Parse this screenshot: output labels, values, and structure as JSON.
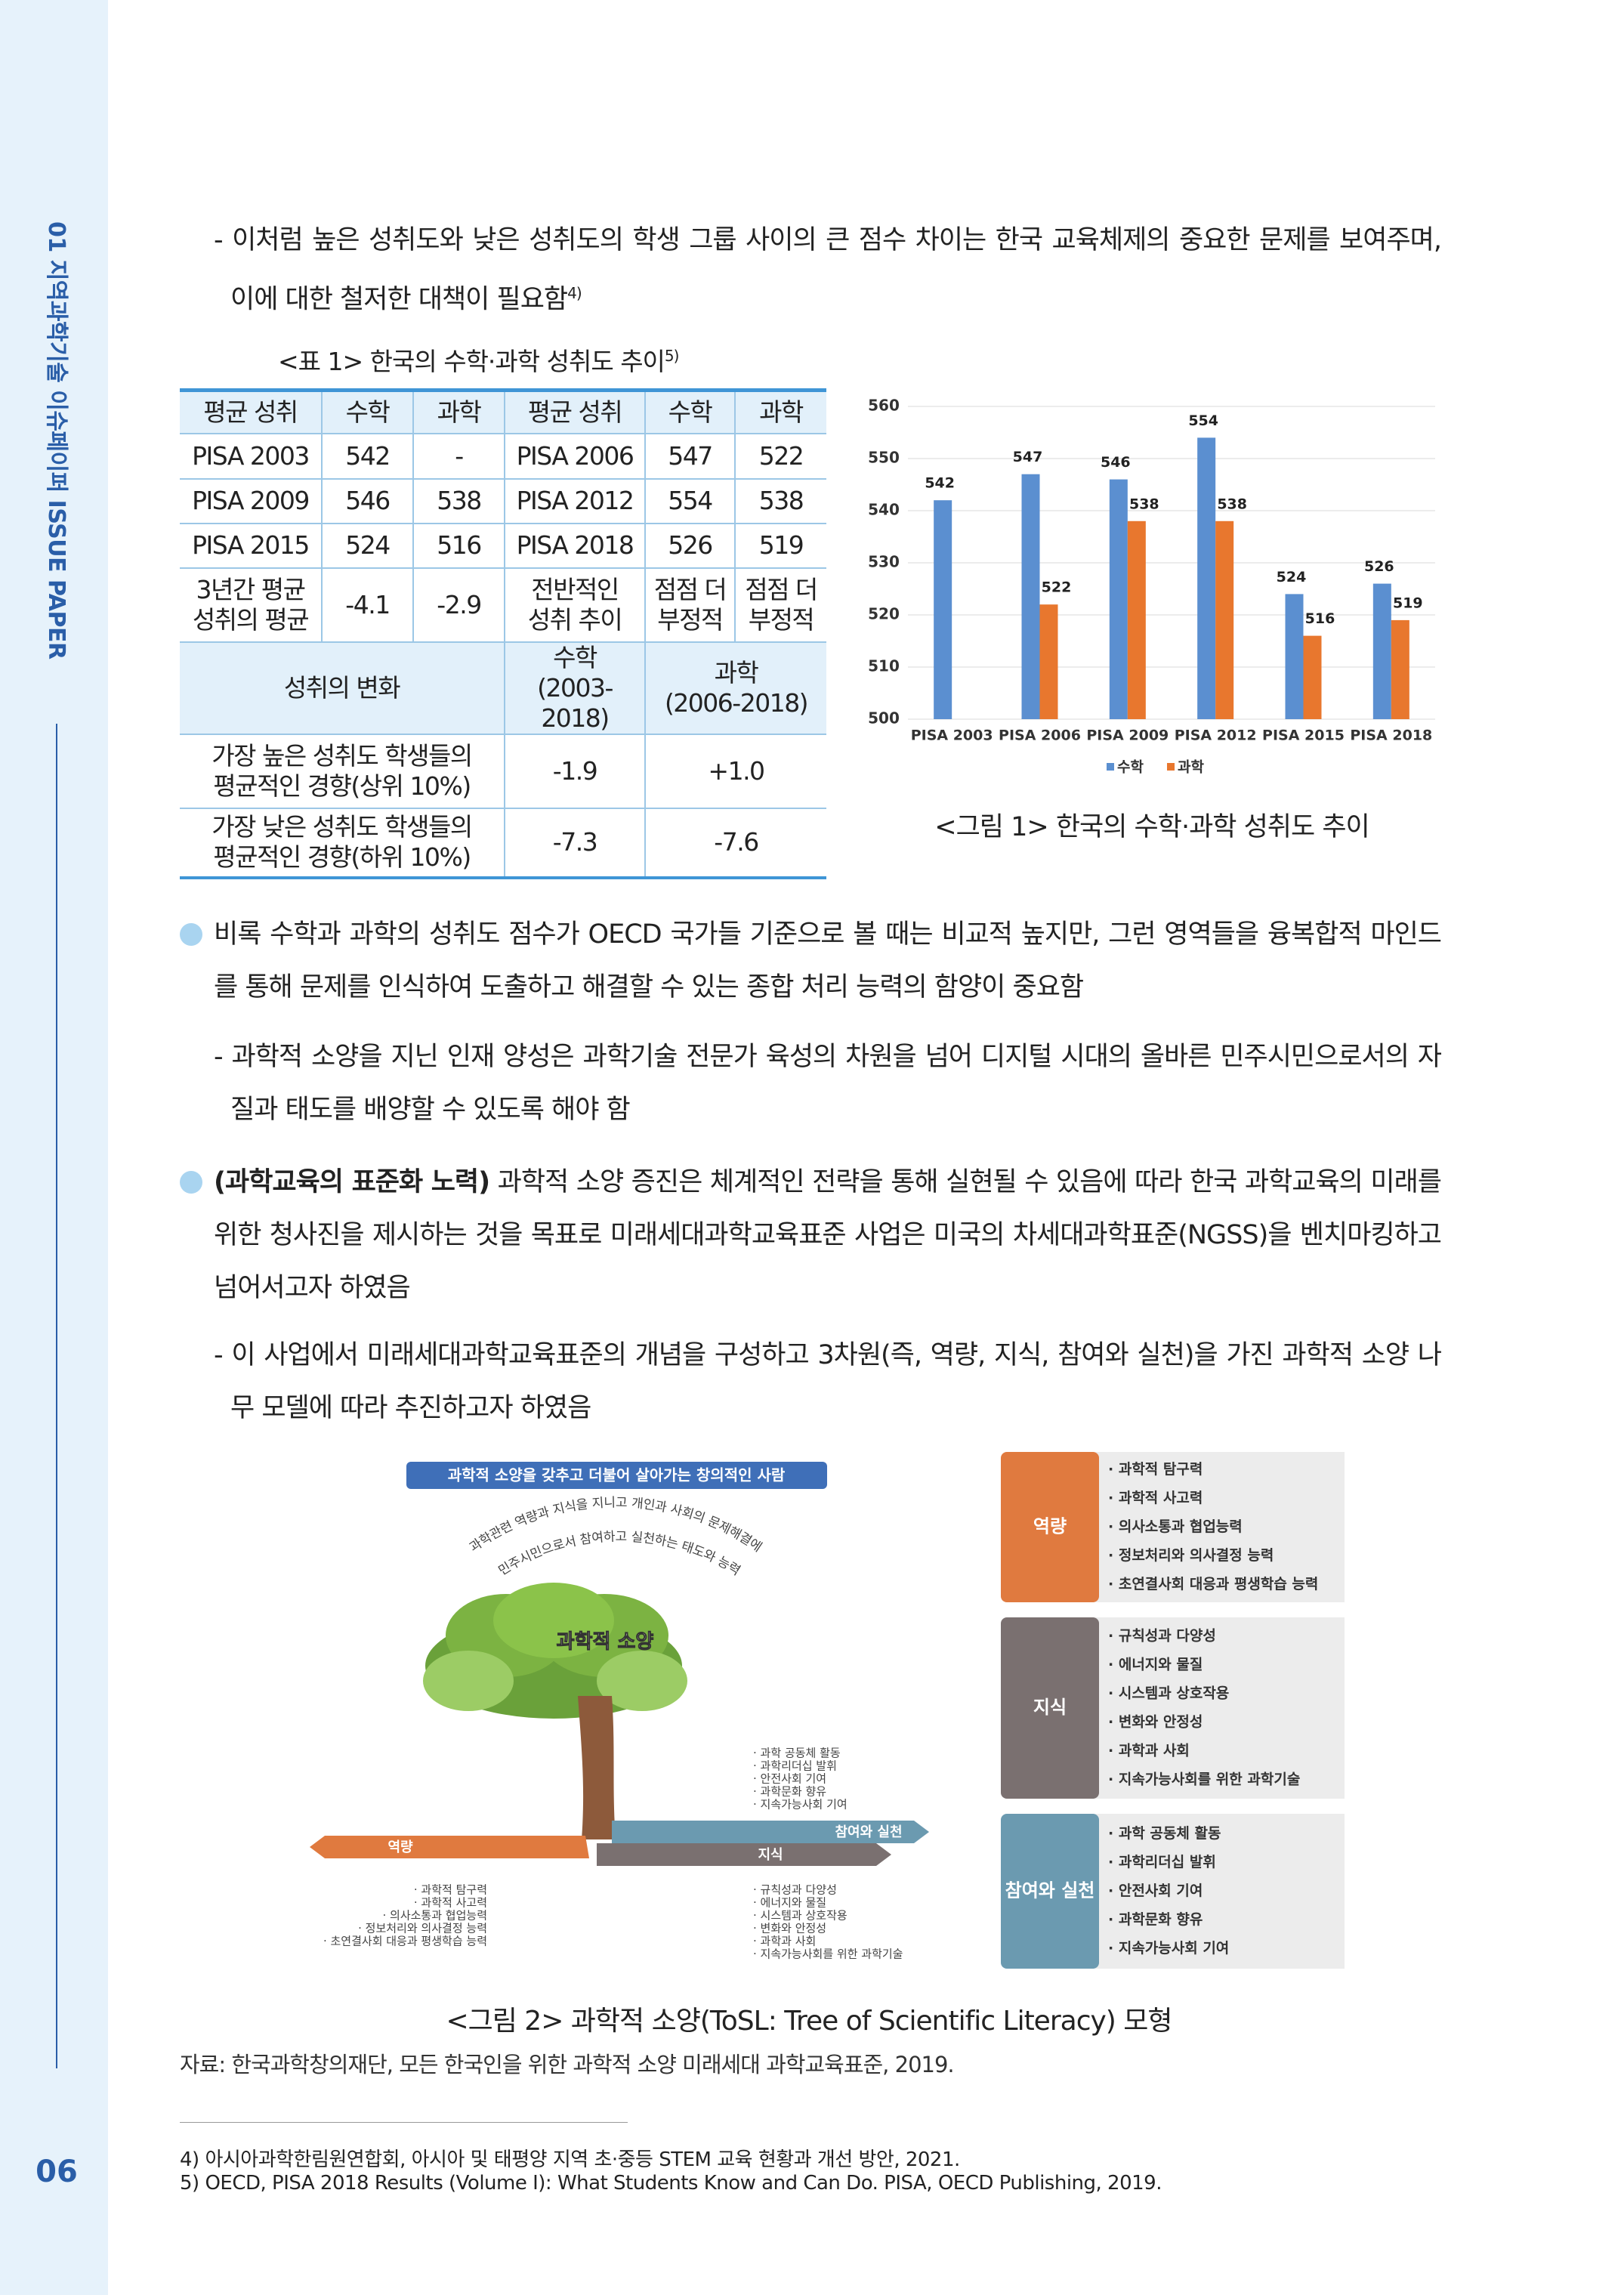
{
  "sidebar": {
    "section": "01 지역과학기술 이슈페이퍼 ISSUE PAPER",
    "page_number": "06"
  },
  "body": {
    "p1": {
      "text": "- 이처럼 높은 성취도와 낮은 성취도의 학생 그룹 사이의 큰 점수 차이는 한국 교육체제의 중요한 문제를 보여주며, 이에 대한 철저한 대책이 필요함",
      "ref": "4)"
    },
    "bullet1": "비록 수학과 과학의 성취도 점수가 OECD 국가들 기준으로 볼 때는 비교적 높지만, 그런 영역들을 융복합적 마인드를 통해 문제를 인식하여 도출하고 해결할 수 있는 종합 처리 능력의 함양이 중요함",
    "dash2": "- 과학적 소양을 지닌 인재 양성은 과학기술 전문가 육성의 차원을 넘어 디지털 시대의 올바른 민주시민으로서의 자질과 태도를 배양할 수 있도록 해야 함",
    "bullet2": {
      "bold": "(과학교육의 표준화 노력)",
      "text": "과학적 소양 증진은 체계적인 전략을 통해 실현될 수 있음에 따라 한국 과학교육의 미래를 위한 청사진을 제시하는 것을 목표로 미래세대과학교육표준 사업은 미국의 차세대과학표준(NGSS)을 벤치마킹하고 넘어서고자 하였음"
    },
    "dash3": "- 이 사업에서 미래세대과학교육표준의 개념을 구성하고 3차원(즉, 역량, 지식, 참여와 실천)을 가진 과학적 소양 나무 모델에 따라 추진하고자 하였음"
  },
  "table": {
    "caption": "<표 1> 한국의 수학·과학 성취도 추이",
    "caption_ref": "5)",
    "header": [
      "평균 성취",
      "수학",
      "과학",
      "평균 성취",
      "수학",
      "과학"
    ],
    "rows": [
      [
        "PISA 2003",
        "542",
        "-",
        "PISA 2006",
        "547",
        "522"
      ],
      [
        "PISA 2009",
        "546",
        "538",
        "PISA 2012",
        "554",
        "538"
      ],
      [
        "PISA 2015",
        "524",
        "516",
        "PISA 2018",
        "526",
        "519"
      ],
      [
        "3년간 평균\n성취의 평균",
        "-4.1",
        "-2.9",
        "전반적인\n성취 추이",
        "점점 더\n부정적",
        "점점 더\n부정적"
      ]
    ],
    "sub_header": [
      "성취의 변화",
      "수학\n(2003-2018)",
      "과학\n(2006-2018)"
    ],
    "sub_rows": [
      [
        "가장 높은 성취도 학생들의\n평균적인 경향(상위 10%)",
        "-1.9",
        "+1.0"
      ],
      [
        "가장 낮은 성취도 학생들의\n평균적인 경향(하위 10%)",
        "-7.3",
        "-7.6"
      ]
    ]
  },
  "chart_data": {
    "type": "bar",
    "caption": "<그림 1> 한국의 수학·과학 성취도 추이",
    "categories": [
      "PISA 2003",
      "PISA 2006",
      "PISA 2009",
      "PISA 2012",
      "PISA 2015",
      "PISA 2018"
    ],
    "series": [
      {
        "name": "수학",
        "color": "#5b8fd0",
        "values": [
          542,
          547,
          546,
          554,
          524,
          526
        ]
      },
      {
        "name": "과학",
        "color": "#e8772e",
        "values": [
          null,
          522,
          538,
          538,
          516,
          519
        ]
      }
    ],
    "ylim": [
      500,
      560
    ],
    "yticks": [
      500,
      510,
      520,
      530,
      540,
      550,
      560
    ],
    "grid": true,
    "legend": "bottom"
  },
  "figure2": {
    "banner": "과학적 소양을 갖추고 더불어 살아가는 창의적인 사람",
    "arc": [
      "과학관련 역량과 지식을 지니고 개인과 사회의 문제해결에",
      "민주시민으로서 참여하고 실천하는 태도와 능력"
    ],
    "tree_label": "과학적 소양",
    "branches": [
      "역량",
      "지식",
      "참여와 실천"
    ],
    "tree_lists": [
      [
        "· 과학적 탐구력",
        "· 과학적 사고력",
        "· 의사소통과 협업능력",
        "· 정보처리와 의사결정 능력",
        "· 초연결사회 대응과 평생학습 능력"
      ],
      [
        "· 규칙성과 다양성",
        "· 에너지와 물질",
        "· 시스템과 상호작용",
        "· 변화와 안정성",
        "· 과학과 사회",
        "· 지속가능사회를 위한 과학기술"
      ],
      [
        "· 과학 공동체 활동",
        "· 과학리더십 발휘",
        "· 안전사회 기여",
        "· 과학문화 향유",
        "· 지속가능사회 기여"
      ]
    ],
    "panel": [
      {
        "label": "역량",
        "items": [
          "· 과학적 탐구력",
          "· 과학적 사고력",
          "· 의사소통과 협업능력",
          "· 정보처리와 의사결정 능력",
          "· 초연결사회 대응과 평생학습 능력"
        ]
      },
      {
        "label": "지식",
        "items": [
          "· 규칙성과 다양성",
          "· 에너지와 물질",
          "· 시스템과 상호작용",
          "· 변화와 안정성",
          "· 과학과 사회",
          "· 지속가능사회를 위한 과학기술"
        ]
      },
      {
        "label": "참여와 실천",
        "items": [
          "· 과학 공동체 활동",
          "· 과학리더십 발휘",
          "· 안전사회 기여",
          "· 과학문화 향유",
          "· 지속가능사회 기여"
        ]
      }
    ],
    "caption": "<그림 2> 과학적 소양(ToSL: Tree of Scientific Literacy) 모형",
    "source": "자료: 한국과학창의재단, 모든 한국인을 위한 과학적 소양 미래세대 과학교육표준, 2019."
  },
  "footnotes": [
    "4) 아시아과학한림원연합회, 아시아 및 태평양 지역 초·중등 STEM 교육 현황과 개선 방안, 2021.",
    "5) OECD, PISA 2018 Results (Volume I): What Students Know and Can Do. PISA, OECD Publishing, 2019."
  ]
}
